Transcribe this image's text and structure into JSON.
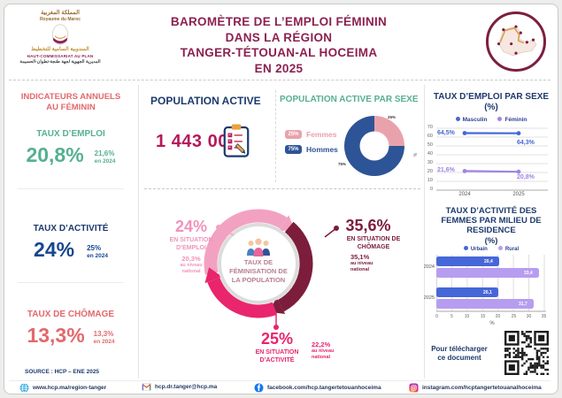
{
  "header": {
    "logo": {
      "arabic_kingdom": "المملكة المغربية",
      "royaume": "Royaume du Maroc",
      "arabic_hcp": "المندوبية السامية للتخطيط",
      "hcp_fr": "HAUT-COMMISSARIAT AU PLAN",
      "arabic_region": "المديرية الجهوية لجهة طنجة-تطوان-الحسيمة"
    },
    "title_lines": [
      "BAROMÈTRE DE L’EMPLOI FÉMININ",
      "DANS LA RÉGION",
      "TANGER-TÉTOUAN-AL HOCEIMA",
      "EN 2025"
    ]
  },
  "indicators": {
    "title_lines": [
      "INDICATEURS ANNUELS",
      "AU FÉMININ"
    ],
    "items": [
      {
        "label": "TAUX D’EMPLOI",
        "value": "20,8%",
        "prev_value": "21,6%",
        "prev_note": "en 2024"
      },
      {
        "label": "TAUX D’ACTIVITÉ",
        "value": "24%",
        "prev_value": "25%",
        "prev_note": "en 2024"
      },
      {
        "label": "TAUX DE CHÔMAGE",
        "value": "13,3%",
        "prev_value": "13,3%",
        "prev_note": "en 2024"
      }
    ]
  },
  "population_active": {
    "title": "POPULATION ACTIVE",
    "value": "1 443 000"
  },
  "population_by_sex": {
    "title": "POPULATION ACTIVE PAR SEXE",
    "slice_labels": [
      "25%",
      "75%"
    ],
    "legend": [
      {
        "value": "25%",
        "label": "Femmes"
      },
      {
        "value": "75%",
        "label": "Hommes"
      }
    ]
  },
  "feminisation": {
    "center_lines": [
      "TAUX DE",
      "FÉMINISATION DE",
      "LA POPULATION"
    ],
    "employment": {
      "value": "24%",
      "label_lines": [
        "EN SITUATION",
        "D’EMPLOI"
      ],
      "national_value": "20,3%",
      "national_note_lines": [
        "au niveau",
        "national"
      ]
    },
    "unemployment": {
      "value": "35,6%",
      "label_lines": [
        "EN SITUATION DE",
        "CHÔMAGE"
      ],
      "national_value": "35,1%",
      "national_note_lines": [
        "au niveau",
        "national"
      ]
    },
    "activity": {
      "value": "25%",
      "label_lines": [
        "EN SITUATION",
        "D’ACTIVITÉ"
      ],
      "national_value": "22,2%",
      "national_note_lines": [
        "au niveau",
        "national"
      ]
    }
  },
  "employment_chart": {
    "title_lines": [
      "TAUX D’EMPLOI PAR SEXE",
      "(%)"
    ],
    "ylabel": "%",
    "legend": [
      {
        "label": "Masculin"
      },
      {
        "label": "Féminin"
      }
    ],
    "yticks": [
      "70",
      "60",
      "50",
      "40",
      "30",
      "20",
      "10",
      "0"
    ],
    "xticks": [
      "2024",
      "2025"
    ],
    "point_labels": {
      "masculin_2024": "64,5%",
      "masculin_2025": "64,3%",
      "feminin_2024": "21,6%",
      "feminin_2025": "20,8%"
    }
  },
  "residence_chart": {
    "title_lines": [
      "TAUX D’ACTIVITÉ DES",
      "FEMMES PAR MILIEU DE",
      "RESIDENCE",
      "(%)"
    ],
    "legend": [
      {
        "label": "Urbain"
      },
      {
        "label": "Rural"
      }
    ],
    "rows": [
      {
        "year": "2024",
        "urbain": "20,4",
        "rural": "33,4"
      },
      {
        "year": "2025",
        "urbain": "20,1",
        "rural": "31,7"
      }
    ],
    "xticks": [
      "0",
      "5",
      "10",
      "15",
      "20",
      "25",
      "30",
      "35"
    ],
    "xlabel": "%"
  },
  "download": {
    "lines": [
      "Pour télécharger",
      "ce document"
    ]
  },
  "source": "SOURCE : HCP – ENE 2025",
  "footer": {
    "links": [
      {
        "icon": "globe-icon",
        "label": "www.hcp.ma/region-tanger"
      },
      {
        "icon": "gmail-icon",
        "label": "hcp.dr.tanger@hcp.ma"
      },
      {
        "icon": "facebook-icon",
        "label": "facebook.com/hcp.tangertetouanhoceima"
      },
      {
        "icon": "instagram-icon",
        "label": "instagram.com/hcptangertetouanalhoceima"
      }
    ]
  },
  "colors": {
    "maroon": "#8C2150",
    "dark_maroon": "#7C1D3C",
    "magenta": "#E8256D",
    "crimson": "#B5195B",
    "pink": "#F093BB",
    "salmon": "#E2696D",
    "green": "#56B090",
    "navy": "#1D3A6D",
    "royal": "#17468F",
    "donut_pink": "#E9A2AC",
    "donut_navy": "#2D5496",
    "line_blue": "#4567D8",
    "line_purple": "#A183E4",
    "bar_purple": "#B79DF0"
  },
  "chart_data": [
    {
      "type": "pie",
      "variant": "donut",
      "title": "POPULATION ACTIVE PAR SEXE",
      "slices": [
        {
          "label": "Femmes",
          "value": 25
        },
        {
          "label": "Hommes",
          "value": 75
        }
      ],
      "unit": "%"
    },
    {
      "type": "line",
      "title": "TAUX D’EMPLOI PAR SEXE (%)",
      "x": [
        "2024",
        "2025"
      ],
      "series": [
        {
          "name": "Masculin",
          "values": [
            64.5,
            64.3
          ]
        },
        {
          "name": "Féminin",
          "values": [
            21.6,
            20.8
          ]
        }
      ],
      "ylim": [
        0,
        70
      ],
      "yticks": [
        0,
        10,
        20,
        30,
        40,
        50,
        60,
        70
      ],
      "grid": true,
      "legend_position": "top",
      "unit": "%"
    },
    {
      "type": "bar",
      "orientation": "horizontal",
      "title": "TAUX D’ACTIVITÉ DES FEMMES PAR MILIEU DE RESIDENCE (%)",
      "categories": [
        "2024",
        "2025"
      ],
      "series": [
        {
          "name": "Urbain",
          "values": [
            20.4,
            20.1
          ]
        },
        {
          "name": "Rural",
          "values": [
            33.4,
            31.7
          ]
        }
      ],
      "xlim": [
        0,
        35
      ],
      "xticks": [
        0,
        5,
        10,
        15,
        20,
        25,
        30,
        35
      ],
      "xlabel": "%",
      "unit": "%"
    }
  ]
}
